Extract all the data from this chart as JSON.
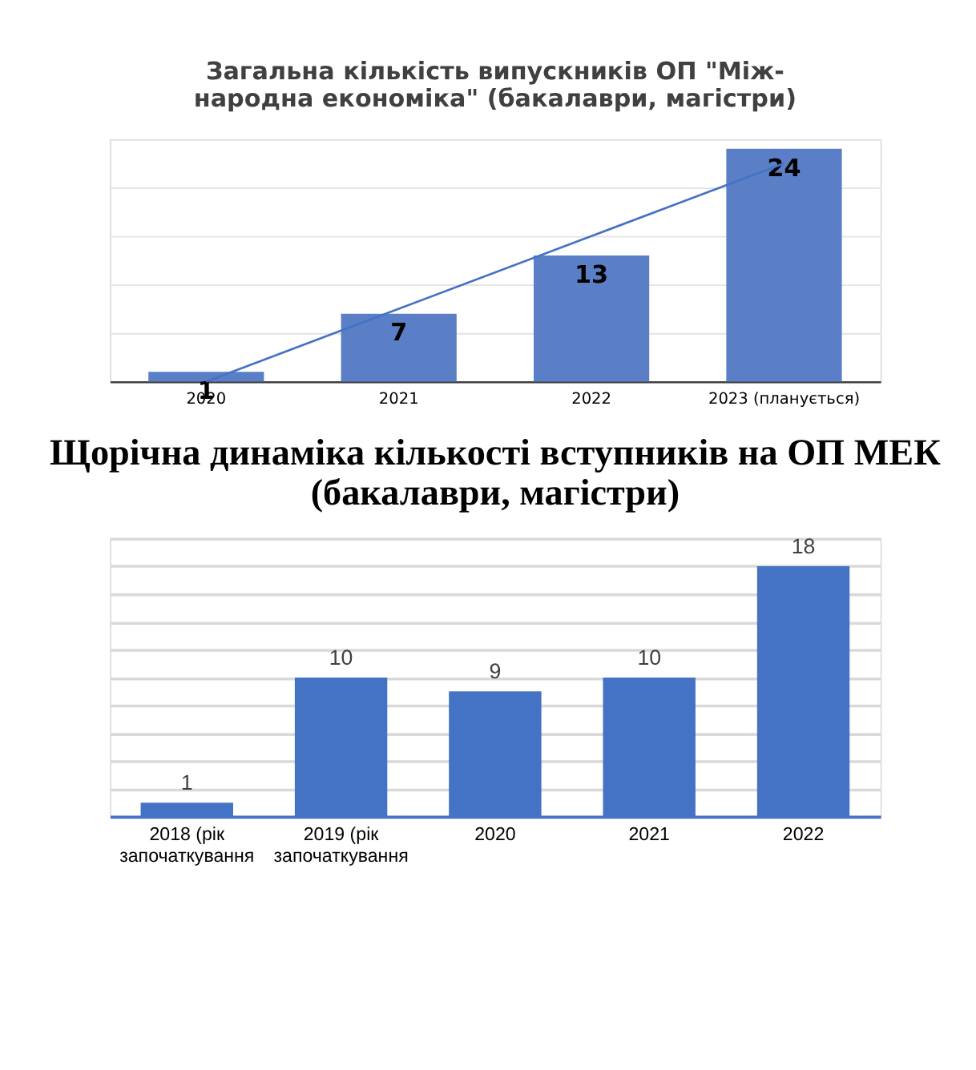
{
  "chart_data": [
    {
      "type": "bar",
      "title": "Загальна кількість випускників ОП  \"Між-\nнародна економіка\" (бакалаври, магістри)",
      "categories": [
        "2020",
        "2021",
        "2022",
        "2023 (планується)"
      ],
      "ylim": [
        0,
        25
      ],
      "yticks": [
        {
          "value": 0,
          "label": null
        },
        {
          "value": 5,
          "label": null
        },
        {
          "value": 10,
          "label": null
        },
        {
          "value": 15,
          "label": null
        },
        {
          "value": 20,
          "label": null
        },
        {
          "value": 25,
          "label": null
        }
      ],
      "grid": "y",
      "tick_labels": "x",
      "series": [
        {
          "color": "#5b7fc7",
          "values": [
            1,
            7,
            13,
            24
          ],
          "value_labels": [
            "1",
            "7",
            "13",
            "24"
          ]
        },
        {
          "type": "line",
          "color": "#4472c4",
          "values": [
            0,
            7.5,
            15,
            22.5
          ]
        }
      ]
    },
    {
      "type": "bar",
      "title": "Щорічна динаміка кількості вступників  на ОП МЕК\n(бакалаври, магістри)",
      "categories": [
        "2018 (рік започаткування",
        "2019 (рік започаткування",
        "2020",
        "2021",
        "2022"
      ],
      "data_labels": true,
      "ylim": [
        0,
        20
      ],
      "yticks": [
        {
          "value": 0,
          "label": null
        },
        {
          "value": 2,
          "label": null
        },
        {
          "value": 4,
          "label": null
        },
        {
          "value": 6,
          "label": null
        },
        {
          "value": 8,
          "label": null
        },
        {
          "value": 10,
          "label": null
        },
        {
          "value": 12,
          "label": null
        },
        {
          "value": 14,
          "label": null
        },
        {
          "value": 16,
          "label": null
        },
        {
          "value": 18,
          "label": null
        },
        {
          "value": 20,
          "label": null
        }
      ],
      "grid": "y",
      "tick_labels": "x",
      "series": [
        {
          "color": "#4472c4",
          "values": [
            1,
            10,
            9,
            10,
            18
          ]
        }
      ]
    }
  ]
}
